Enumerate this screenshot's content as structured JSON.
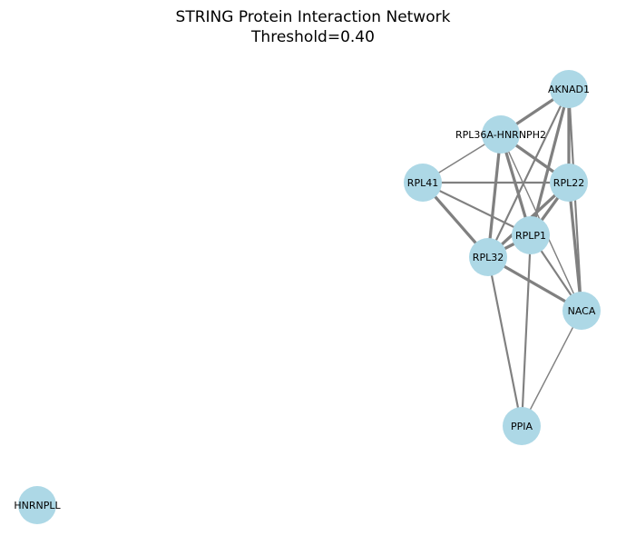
{
  "title": {
    "line1": "STRING Protein Interaction Network",
    "line2": "Threshold=0.40"
  },
  "colors": {
    "node_fill": "#add8e6",
    "edge_stroke": "#808080",
    "label": "#000000"
  },
  "nodes": [
    {
      "id": "AKNAD1",
      "label": "AKNAD1"
    },
    {
      "id": "RPL36A-HNRNPH2",
      "label": "RPL36A-HNRNPH2"
    },
    {
      "id": "RPL41",
      "label": "RPL41"
    },
    {
      "id": "RPL22",
      "label": "RPL22"
    },
    {
      "id": "RPLP1",
      "label": "RPLP1"
    },
    {
      "id": "RPL32",
      "label": "RPL32"
    },
    {
      "id": "NACA",
      "label": "NACA"
    },
    {
      "id": "PPIA",
      "label": "PPIA"
    },
    {
      "id": "HNRNPLL",
      "label": "HNRNPLL"
    }
  ],
  "edges": [
    {
      "source": "AKNAD1",
      "target": "RPL36A-HNRNPH2",
      "weight": 0.9
    },
    {
      "source": "AKNAD1",
      "target": "RPL22",
      "weight": 0.9
    },
    {
      "source": "AKNAD1",
      "target": "RPLP1",
      "weight": 0.9
    },
    {
      "source": "AKNAD1",
      "target": "RPL32",
      "weight": 0.6
    },
    {
      "source": "AKNAD1",
      "target": "NACA",
      "weight": 0.6
    },
    {
      "source": "RPL36A-HNRNPH2",
      "target": "RPL41",
      "weight": 0.4
    },
    {
      "source": "RPL36A-HNRNPH2",
      "target": "RPL22",
      "weight": 0.9
    },
    {
      "source": "RPL36A-HNRNPH2",
      "target": "RPLP1",
      "weight": 0.9
    },
    {
      "source": "RPL36A-HNRNPH2",
      "target": "RPL32",
      "weight": 0.9
    },
    {
      "source": "RPL36A-HNRNPH2",
      "target": "NACA",
      "weight": 0.4
    },
    {
      "source": "RPL41",
      "target": "RPL22",
      "weight": 0.6
    },
    {
      "source": "RPL41",
      "target": "RPLP1",
      "weight": 0.6
    },
    {
      "source": "RPL41",
      "target": "RPL32",
      "weight": 0.9
    },
    {
      "source": "RPL22",
      "target": "RPLP1",
      "weight": 0.9
    },
    {
      "source": "RPL22",
      "target": "RPL32",
      "weight": 0.9
    },
    {
      "source": "RPL22",
      "target": "NACA",
      "weight": 0.9
    },
    {
      "source": "RPLP1",
      "target": "RPL32",
      "weight": 0.9
    },
    {
      "source": "RPLP1",
      "target": "NACA",
      "weight": 0.6
    },
    {
      "source": "RPLP1",
      "target": "PPIA",
      "weight": 0.6
    },
    {
      "source": "RPL32",
      "target": "NACA",
      "weight": 0.9
    },
    {
      "source": "RPL32",
      "target": "PPIA",
      "weight": 0.6
    },
    {
      "source": "NACA",
      "target": "PPIA",
      "weight": 0.4
    }
  ]
}
